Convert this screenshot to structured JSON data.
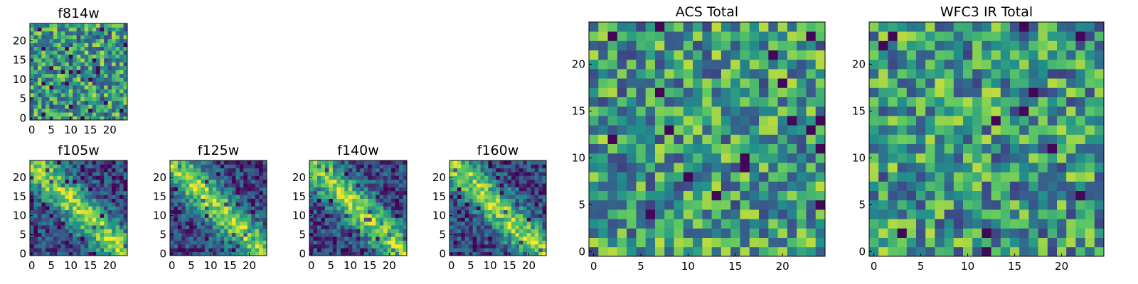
{
  "colormap": [
    "#440154",
    "#3b528b",
    "#21918c",
    "#5ec962",
    "#fde725"
  ],
  "chart_data": [
    {
      "id": "f814w",
      "type": "heatmap",
      "title": "f814w",
      "pattern": "noise",
      "grid_size": 25,
      "seed": 814,
      "xlim": [
        0,
        24
      ],
      "ylim": [
        0,
        24
      ],
      "xticks": [
        "0",
        "5",
        "10",
        "15",
        "20"
      ],
      "yticks": [
        "0",
        "5",
        "10",
        "15",
        "20"
      ]
    },
    {
      "id": "f105w",
      "type": "heatmap",
      "title": "f105w",
      "pattern": "diagonal-band",
      "grid_size": 25,
      "seed": 105,
      "xlim": [
        0,
        24
      ],
      "ylim": [
        0,
        24
      ],
      "xticks": [
        "0",
        "5",
        "10",
        "15",
        "20"
      ],
      "yticks": [
        "0",
        "5",
        "10",
        "15",
        "20"
      ]
    },
    {
      "id": "f125w",
      "type": "heatmap",
      "title": "f125w",
      "pattern": "diagonal-band",
      "grid_size": 25,
      "seed": 125,
      "xlim": [
        0,
        24
      ],
      "ylim": [
        0,
        24
      ],
      "xticks": [
        "0",
        "5",
        "10",
        "15",
        "20"
      ],
      "yticks": [
        "0",
        "5",
        "10",
        "15",
        "20"
      ]
    },
    {
      "id": "f140w",
      "type": "heatmap",
      "title": "f140w",
      "pattern": "diagonal-band",
      "grid_size": 25,
      "seed": 140,
      "xlim": [
        0,
        24
      ],
      "ylim": [
        0,
        24
      ],
      "xticks": [
        "0",
        "5",
        "10",
        "15",
        "20"
      ],
      "yticks": [
        "0",
        "5",
        "10",
        "15",
        "20"
      ]
    },
    {
      "id": "f160w",
      "type": "heatmap",
      "title": "f160w",
      "pattern": "diagonal-band",
      "grid_size": 25,
      "seed": 160,
      "xlim": [
        0,
        24
      ],
      "ylim": [
        0,
        24
      ],
      "xticks": [
        "0",
        "5",
        "10",
        "15",
        "20"
      ],
      "yticks": [
        "0",
        "5",
        "10",
        "15",
        "20"
      ]
    },
    {
      "id": "acs-total",
      "type": "heatmap",
      "title": "ACS Total",
      "pattern": "noise",
      "grid_size": 25,
      "seed": 2001,
      "xlim": [
        0,
        24
      ],
      "ylim": [
        0,
        24
      ],
      "xticks": [
        "0",
        "5",
        "10",
        "15",
        "20"
      ],
      "yticks": [
        "0",
        "5",
        "10",
        "15",
        "20"
      ]
    },
    {
      "id": "wfc3-ir-total",
      "type": "heatmap",
      "title": "WFC3 IR Total",
      "pattern": "noise",
      "grid_size": 25,
      "seed": 3003,
      "xlim": [
        0,
        24
      ],
      "ylim": [
        0,
        24
      ],
      "xticks": [
        "0",
        "5",
        "10",
        "15",
        "20"
      ],
      "yticks": [
        "0",
        "5",
        "10",
        "15",
        "20"
      ]
    }
  ]
}
